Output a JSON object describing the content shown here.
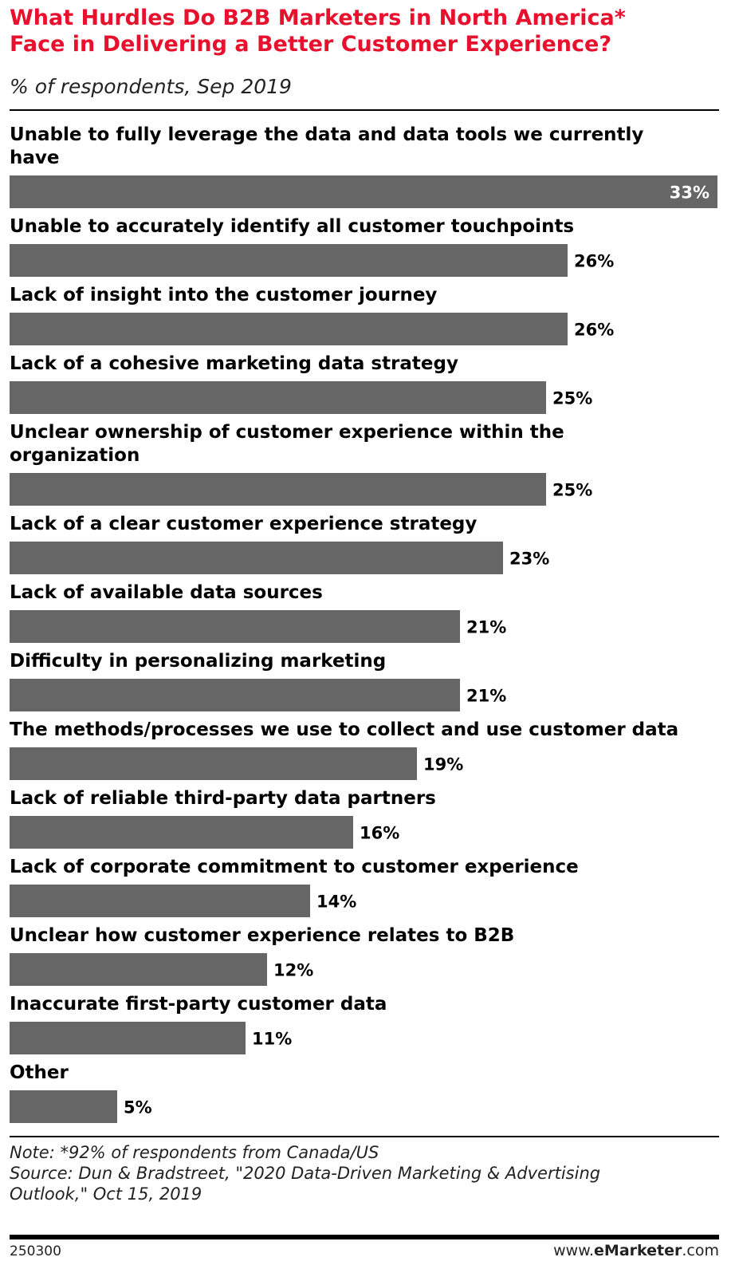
{
  "header": {
    "title_line1": "What Hurdles Do B2B Marketers in North America*",
    "title_line2": "Face in Delivering a Better Customer Experience?",
    "subtitle": "% of respondents, Sep 2019"
  },
  "chart_data": {
    "type": "bar",
    "orientation": "horizontal",
    "categories": [
      "Unable to fully leverage the data and data tools we currently have",
      "Unable to accurately identify all customer touchpoints",
      "Lack of insight into the customer journey",
      "Lack of a cohesive marketing data strategy",
      "Unclear ownership of customer experience within the organization",
      "Lack of a clear customer experience strategy",
      "Lack of available data sources",
      "Difficulty in personalizing marketing",
      "The methods/processes we use to collect and use customer data",
      "Lack of reliable third-party data partners",
      "Lack of corporate commitment to customer experience",
      "Unclear how customer experience relates to B2B",
      "Inaccurate first-party customer data",
      "Other"
    ],
    "category_lines": [
      [
        "Unable to fully leverage the data and data tools we currently",
        "have"
      ],
      [
        "Unable to accurately identify all customer touchpoints"
      ],
      [
        "Lack of insight into the customer journey"
      ],
      [
        "Lack of a cohesive marketing data strategy"
      ],
      [
        "Unclear ownership of customer experience within the",
        "organization"
      ],
      [
        "Lack of a clear customer experience strategy"
      ],
      [
        "Lack of available data sources"
      ],
      [
        "Difficulty in personalizing marketing"
      ],
      [
        "The methods/processes we use to collect and use customer data"
      ],
      [
        "Lack of reliable third-party data partners"
      ],
      [
        "Lack of corporate commitment to customer experience"
      ],
      [
        "Unclear how customer experience relates to B2B"
      ],
      [
        "Inaccurate first-party customer data"
      ],
      [
        "Other"
      ]
    ],
    "values": [
      33,
      26,
      26,
      25,
      25,
      23,
      21,
      21,
      19,
      16,
      14,
      12,
      11,
      5
    ],
    "value_labels": [
      "33%",
      "26%",
      "26%",
      "25%",
      "25%",
      "23%",
      "21%",
      "21%",
      "19%",
      "16%",
      "14%",
      "12%",
      "11%",
      "5%"
    ],
    "xlim": [
      0,
      33
    ],
    "bar_color": "#666666",
    "grid": false,
    "legend": "none"
  },
  "footer": {
    "note": "Note: *92% of respondents from Canada/US",
    "source_line1": "Source: Dun & Bradstreet, \"2020 Data-Driven Marketing & Advertising",
    "source_line2": "Outlook,\" Oct 15, 2019",
    "chart_id": "250300",
    "brand_prefix": "www.",
    "brand_name": "eMarketer",
    "brand_suffix": ".com"
  },
  "colors": {
    "title": "#e8112d",
    "bar": "#666666"
  }
}
